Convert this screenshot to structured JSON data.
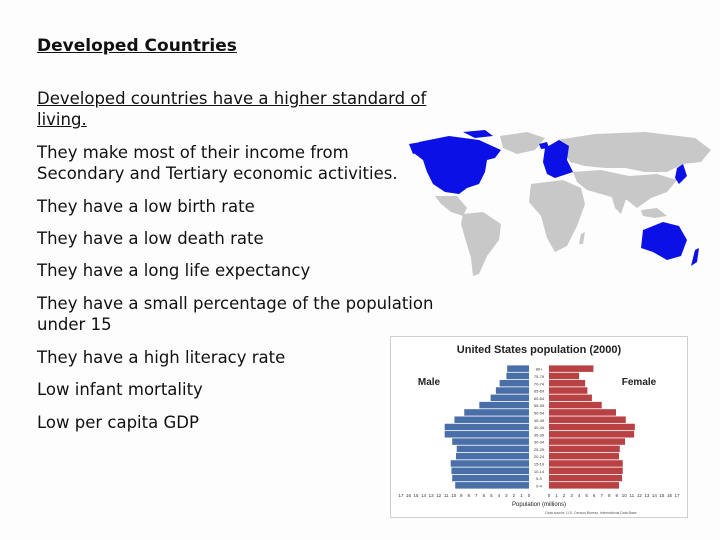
{
  "slide": {
    "title": "Developed Countries",
    "points": [
      "Developed countries have a higher standard of living.",
      "They make most of their income from Secondary and Tertiary economic activities.",
      "They have a low birth rate",
      "They have a low death rate",
      "They have a long life expectancy",
      "They have a small percentage of the population under 15",
      "They have a high literacy rate",
      "Low infant mortality",
      "Low per capita GDP"
    ]
  },
  "map": {
    "highlight_color": "#0a10e6",
    "land_color": "#c8c8c8"
  },
  "chart_data": {
    "type": "bar",
    "title": "United States population (2000)",
    "left_label": "Male",
    "right_label": "Female",
    "xlabel": "Population (millions)",
    "male_color": "#4a6fa8",
    "female_color": "#b84144",
    "categories": [
      "0-4",
      "5-9",
      "10-14",
      "15-19",
      "20-24",
      "25-29",
      "30-34",
      "35-39",
      "40-44",
      "45-49",
      "50-54",
      "55-59",
      "60-64",
      "65-69",
      "70-74",
      "75-79",
      "80+"
    ],
    "series": [
      {
        "name": "Male",
        "values": [
          9.8,
          10.2,
          10.3,
          10.4,
          9.7,
          9.6,
          10.2,
          11.2,
          11.2,
          9.9,
          8.6,
          6.6,
          5.1,
          4.4,
          3.9,
          3.0,
          2.9
        ]
      },
      {
        "name": "Female",
        "values": [
          9.3,
          9.7,
          9.8,
          9.8,
          9.3,
          9.4,
          10.1,
          11.3,
          11.4,
          10.2,
          8.9,
          7.0,
          5.7,
          5.1,
          4.8,
          4.0,
          5.9
        ]
      }
    ],
    "xticks": [
      "17",
      "16",
      "15",
      "14",
      "13",
      "12",
      "11",
      "10",
      "9",
      "8",
      "7",
      "6",
      "5",
      "4",
      "3",
      "2",
      "1",
      "0",
      "0",
      "1",
      "2",
      "3",
      "4",
      "5",
      "6",
      "7",
      "8",
      "9",
      "10",
      "11",
      "12",
      "13",
      "14",
      "15",
      "16",
      "17"
    ],
    "xlim": [
      0,
      17
    ],
    "source": "Data source: U.S. Census Bureau, International Data Base"
  }
}
